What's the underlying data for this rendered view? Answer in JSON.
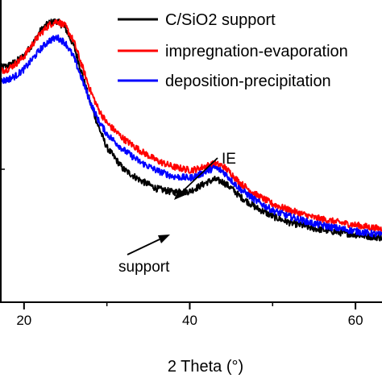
{
  "chart_data": {
    "type": "line",
    "xlabel": "2 Theta (°)",
    "ylabel": "",
    "xlim": [
      17.1,
      63.2
    ],
    "ylim": [
      0,
      1
    ],
    "grid": false,
    "legend_position": "top-right",
    "x_ticks": [
      20,
      40,
      60
    ],
    "series": [
      {
        "name": "C/SiO2 support",
        "color": "#000000",
        "x": [
          17.1,
          18,
          19,
          20,
          21,
          22,
          23,
          24,
          25,
          26,
          27,
          28,
          29,
          30,
          32,
          34,
          36,
          38,
          40,
          41,
          42,
          43,
          44,
          45,
          46,
          48,
          50,
          52,
          55,
          58,
          61,
          63.2
        ],
        "y": [
          0.777,
          0.782,
          0.796,
          0.816,
          0.853,
          0.899,
          0.924,
          0.931,
          0.906,
          0.849,
          0.756,
          0.659,
          0.58,
          0.512,
          0.44,
          0.404,
          0.376,
          0.364,
          0.367,
          0.381,
          0.396,
          0.406,
          0.398,
          0.378,
          0.351,
          0.313,
          0.284,
          0.264,
          0.244,
          0.231,
          0.22,
          0.213
        ]
      },
      {
        "name": "impregnation-evaporation",
        "color": "#ff0000",
        "x": [
          17.1,
          18,
          19,
          20,
          21,
          22,
          23,
          24,
          25,
          26,
          27,
          28,
          29,
          30,
          32,
          34,
          36,
          38,
          40,
          41,
          42,
          43,
          44,
          45,
          46,
          48,
          50,
          52,
          55,
          58,
          61,
          63.2
        ],
        "y": [
          0.766,
          0.771,
          0.789,
          0.813,
          0.853,
          0.889,
          0.917,
          0.931,
          0.913,
          0.863,
          0.782,
          0.701,
          0.637,
          0.593,
          0.541,
          0.502,
          0.469,
          0.448,
          0.437,
          0.441,
          0.451,
          0.458,
          0.451,
          0.426,
          0.396,
          0.356,
          0.325,
          0.305,
          0.28,
          0.264,
          0.251,
          0.242
        ]
      },
      {
        "name": "deposition-precipitation",
        "color": "#0000ff",
        "x": [
          17.1,
          18,
          19,
          20,
          21,
          22,
          23,
          24,
          25,
          26,
          27,
          28,
          29,
          30,
          32,
          34,
          36,
          38,
          40,
          41,
          42,
          43,
          44,
          45,
          46,
          48,
          50,
          52,
          55,
          58,
          61,
          63.2
        ],
        "y": [
          0.731,
          0.736,
          0.749,
          0.771,
          0.804,
          0.838,
          0.865,
          0.876,
          0.858,
          0.811,
          0.738,
          0.662,
          0.6,
          0.557,
          0.504,
          0.464,
          0.436,
          0.416,
          0.411,
          0.42,
          0.433,
          0.445,
          0.433,
          0.404,
          0.376,
          0.336,
          0.304,
          0.284,
          0.26,
          0.244,
          0.231,
          0.222
        ]
      }
    ],
    "annotations": [
      {
        "text": "IE",
        "target_series": "impregnation-evaporation",
        "target_x": 37.7
      },
      {
        "text": "support",
        "target_series": "C/SiO2 support",
        "target_x": 38.3
      }
    ]
  }
}
